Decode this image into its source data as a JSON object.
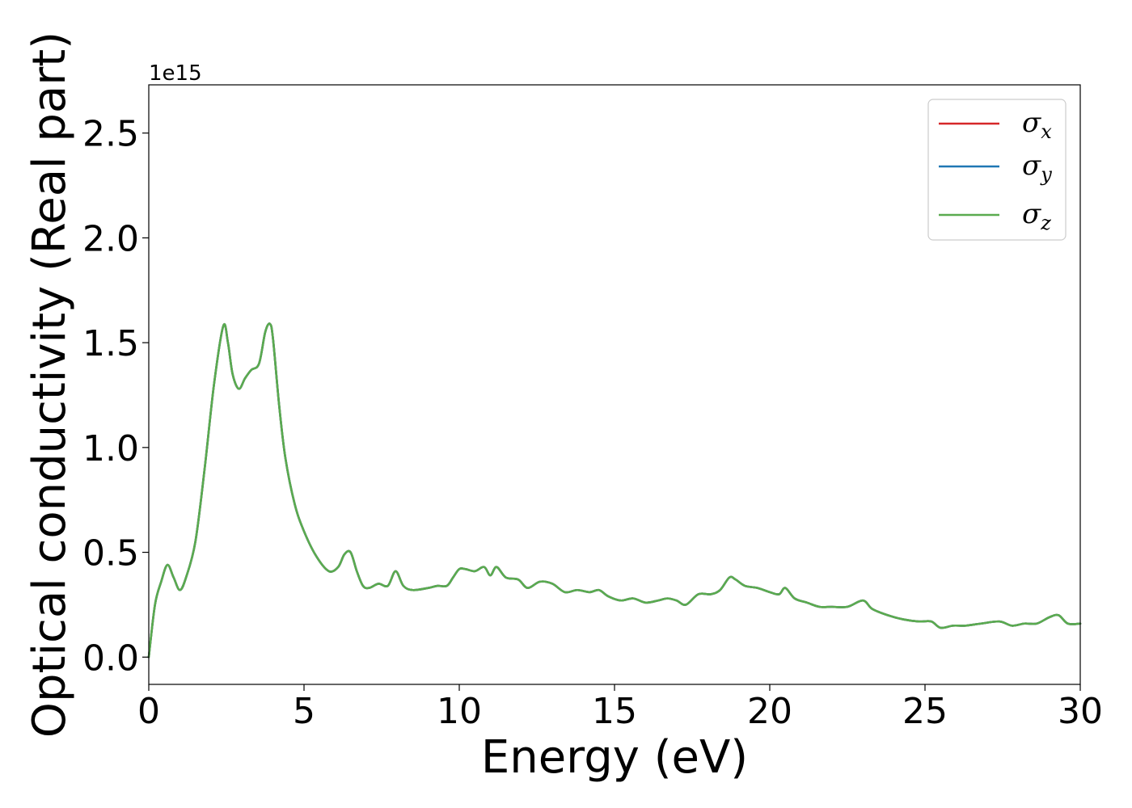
{
  "chart_data": {
    "type": "line",
    "title": "",
    "xlabel": "Energy (eV)",
    "ylabel": "Optical conductivity (Real part)",
    "y_offset_label": "1e15",
    "y_scale": 1000000000000000.0,
    "xlim": [
      0,
      30
    ],
    "ylim": [
      -0.13,
      2.73
    ],
    "xticks": [
      0,
      5,
      10,
      15,
      20,
      25,
      30
    ],
    "xtick_labels": [
      "0",
      "5",
      "10",
      "15",
      "20",
      "25",
      "30"
    ],
    "yticks": [
      0.0,
      0.5,
      1.0,
      1.5,
      2.0,
      2.5
    ],
    "ytick_labels": [
      "0.0",
      "0.5",
      "1.0",
      "1.5",
      "2.0",
      "2.5"
    ],
    "grid": false,
    "legend_position": "top-right",
    "x": [
      0,
      0.2,
      0.4,
      0.6,
      0.8,
      1.0,
      1.2,
      1.5,
      1.8,
      2.1,
      2.4,
      2.55,
      2.7,
      2.9,
      3.1,
      3.3,
      3.55,
      3.75,
      3.9,
      4.0,
      4.2,
      4.4,
      4.7,
      5.0,
      5.4,
      5.8,
      6.1,
      6.3,
      6.5,
      6.7,
      6.9,
      7.1,
      7.4,
      7.7,
      7.95,
      8.2,
      8.5,
      9.0,
      9.3,
      9.6,
      9.8,
      10.0,
      10.2,
      10.5,
      10.8,
      11.0,
      11.2,
      11.5,
      11.9,
      12.2,
      12.6,
      13.0,
      13.4,
      13.8,
      14.2,
      14.5,
      14.8,
      15.2,
      15.6,
      16.0,
      16.4,
      16.7,
      17.0,
      17.3,
      17.7,
      18.1,
      18.4,
      18.7,
      18.9,
      19.2,
      19.6,
      20.0,
      20.3,
      20.5,
      20.8,
      21.2,
      21.6,
      22.0,
      22.5,
      23.0,
      23.3,
      23.8,
      24.3,
      24.8,
      25.2,
      25.5,
      25.9,
      26.3,
      26.8,
      27.4,
      27.8,
      28.2,
      28.6,
      29.0,
      29.3,
      29.6,
      30.0
    ],
    "series": [
      {
        "name": "σx",
        "color": "#d62728",
        "values": [
          0.0,
          0.25,
          0.36,
          0.44,
          0.38,
          0.32,
          0.38,
          0.55,
          0.9,
          1.3,
          1.58,
          1.5,
          1.35,
          1.28,
          1.33,
          1.37,
          1.4,
          1.55,
          1.59,
          1.52,
          1.2,
          0.95,
          0.73,
          0.6,
          0.48,
          0.41,
          0.43,
          0.49,
          0.5,
          0.41,
          0.34,
          0.33,
          0.35,
          0.34,
          0.41,
          0.34,
          0.32,
          0.33,
          0.34,
          0.34,
          0.38,
          0.42,
          0.42,
          0.41,
          0.43,
          0.39,
          0.43,
          0.38,
          0.37,
          0.33,
          0.36,
          0.35,
          0.31,
          0.32,
          0.31,
          0.32,
          0.29,
          0.27,
          0.28,
          0.26,
          0.27,
          0.28,
          0.27,
          0.25,
          0.3,
          0.3,
          0.32,
          0.38,
          0.37,
          0.34,
          0.33,
          0.31,
          0.3,
          0.33,
          0.28,
          0.26,
          0.24,
          0.24,
          0.24,
          0.27,
          0.23,
          0.2,
          0.18,
          0.17,
          0.17,
          0.14,
          0.15,
          0.15,
          0.16,
          0.17,
          0.15,
          0.16,
          0.16,
          0.19,
          0.2,
          0.16,
          0.16
        ]
      },
      {
        "name": "σy",
        "color": "#1f77b4",
        "values": [
          0.0,
          0.25,
          0.36,
          0.44,
          0.38,
          0.32,
          0.38,
          0.55,
          0.9,
          1.3,
          1.58,
          1.5,
          1.35,
          1.28,
          1.33,
          1.37,
          1.4,
          1.55,
          1.59,
          1.52,
          1.2,
          0.95,
          0.73,
          0.6,
          0.48,
          0.41,
          0.43,
          0.49,
          0.5,
          0.41,
          0.34,
          0.33,
          0.35,
          0.34,
          0.41,
          0.34,
          0.32,
          0.33,
          0.34,
          0.34,
          0.38,
          0.42,
          0.42,
          0.41,
          0.43,
          0.39,
          0.43,
          0.38,
          0.37,
          0.33,
          0.36,
          0.35,
          0.31,
          0.32,
          0.31,
          0.32,
          0.29,
          0.27,
          0.28,
          0.26,
          0.27,
          0.28,
          0.27,
          0.25,
          0.3,
          0.3,
          0.32,
          0.38,
          0.37,
          0.34,
          0.33,
          0.31,
          0.3,
          0.33,
          0.28,
          0.26,
          0.24,
          0.24,
          0.24,
          0.27,
          0.23,
          0.2,
          0.18,
          0.17,
          0.17,
          0.14,
          0.15,
          0.15,
          0.16,
          0.17,
          0.15,
          0.16,
          0.16,
          0.19,
          0.2,
          0.16,
          0.16
        ]
      },
      {
        "name": "σz",
        "color": "#5aab4f",
        "values": [
          0.0,
          0.25,
          0.36,
          0.44,
          0.38,
          0.32,
          0.38,
          0.55,
          0.9,
          1.3,
          1.58,
          1.5,
          1.35,
          1.28,
          1.33,
          1.37,
          1.4,
          1.55,
          1.59,
          1.52,
          1.2,
          0.95,
          0.73,
          0.6,
          0.48,
          0.41,
          0.43,
          0.49,
          0.5,
          0.41,
          0.34,
          0.33,
          0.35,
          0.34,
          0.41,
          0.34,
          0.32,
          0.33,
          0.34,
          0.34,
          0.38,
          0.42,
          0.42,
          0.41,
          0.43,
          0.39,
          0.43,
          0.38,
          0.37,
          0.33,
          0.36,
          0.35,
          0.31,
          0.32,
          0.31,
          0.32,
          0.29,
          0.27,
          0.28,
          0.26,
          0.27,
          0.28,
          0.27,
          0.25,
          0.3,
          0.3,
          0.32,
          0.38,
          0.37,
          0.34,
          0.33,
          0.31,
          0.3,
          0.33,
          0.28,
          0.26,
          0.24,
          0.24,
          0.24,
          0.27,
          0.23,
          0.2,
          0.18,
          0.17,
          0.17,
          0.14,
          0.15,
          0.15,
          0.16,
          0.17,
          0.15,
          0.16,
          0.16,
          0.19,
          0.2,
          0.16,
          0.16
        ]
      }
    ],
    "legend": [
      {
        "symbol": "σ",
        "sub": "x",
        "color": "#d62728"
      },
      {
        "symbol": "σ",
        "sub": "y",
        "color": "#1f77b4"
      },
      {
        "symbol": "σ",
        "sub": "z",
        "color": "#5aab4f"
      }
    ]
  }
}
